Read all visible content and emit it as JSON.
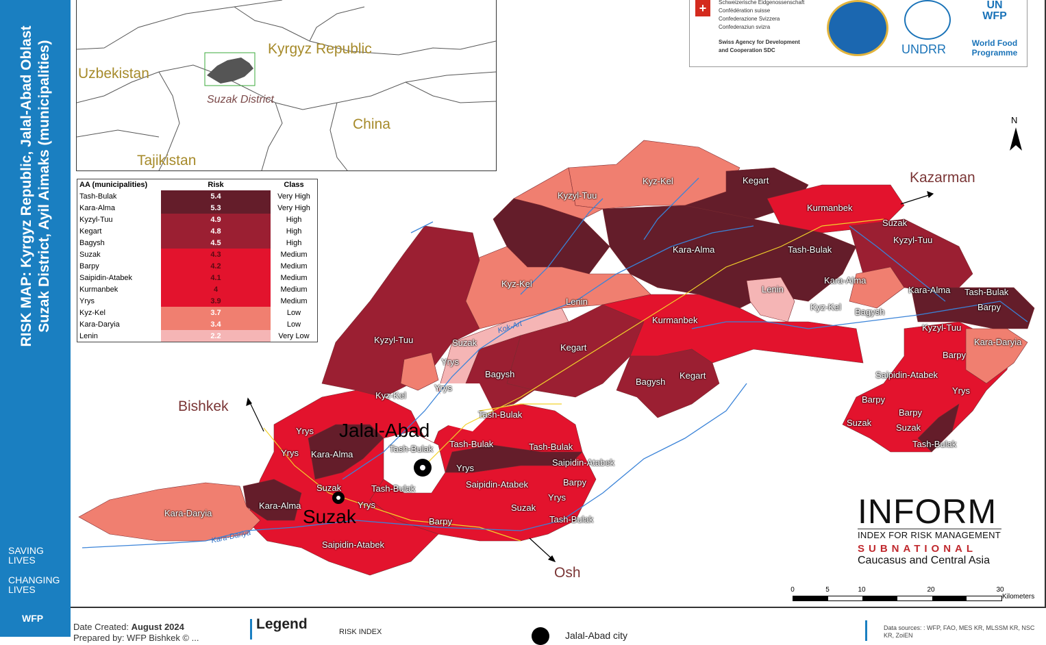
{
  "sidebar": {
    "title_line1": "RISK MAP: Kyrgyz Republic, Jalal-Abad Oblast",
    "title_line2": "Suzak District, Ayil Aimaks (municipalities)",
    "slogan1": [
      "SAVING",
      "LIVES"
    ],
    "slogan2": [
      "CHANGING",
      "LIVES"
    ],
    "wfp_mark": "WFP"
  },
  "inset": {
    "labels": {
      "kyrgyz": "Kyrgyz Republic",
      "uzbekistan": "Uzbekistan",
      "china": "China",
      "tajikistan": "Tajikistan",
      "district": "Suzak District"
    }
  },
  "risk_table": {
    "headers": [
      "AA (municipalities)",
      "Risk",
      "Class"
    ],
    "rows": [
      {
        "name": "Tash-Bulak",
        "risk": "5.4",
        "class": "Very High",
        "color": "#641d2a"
      },
      {
        "name": "Kara-Alma",
        "risk": "5.3",
        "class": "Very High",
        "color": "#641d2a"
      },
      {
        "name": "Kyzyl-Tuu",
        "risk": "4.9",
        "class": "High",
        "color": "#9b1f32"
      },
      {
        "name": "Kegart",
        "risk": "4.8",
        "class": "High",
        "color": "#9b1f32"
      },
      {
        "name": "Bagysh",
        "risk": "4.5",
        "class": "High",
        "color": "#9b1f32"
      },
      {
        "name": "Suzak",
        "risk": "4.3",
        "class": "Medium",
        "color": "#e3132d"
      },
      {
        "name": "Barpy",
        "risk": "4.2",
        "class": "Medium",
        "color": "#e3132d"
      },
      {
        "name": "Saipidin-Atabek",
        "risk": "4.1",
        "class": "Medium",
        "color": "#e3132d"
      },
      {
        "name": "Kurmanbek",
        "risk": "4",
        "class": "Medium",
        "color": "#e3132d"
      },
      {
        "name": "Yrys",
        "risk": "3.9",
        "class": "Medium",
        "color": "#e3132d"
      },
      {
        "name": "Kyz-Kel",
        "risk": "3.7",
        "class": "Low",
        "color": "#f07f70"
      },
      {
        "name": "Kara-Daryia",
        "risk": "3.4",
        "class": "Low",
        "color": "#f07f70"
      },
      {
        "name": "Lenin",
        "risk": "2.2",
        "class": "Very Low",
        "color": "#f5b5b5"
      }
    ]
  },
  "logos": {
    "sdc_lines": [
      "Schweizerische Eidgenossenschaft",
      "Confédération suisse",
      "Confederazione Svizzera",
      "Confederaziun svizra"
    ],
    "sdc_sub": [
      "Swiss Agency for Development",
      "and Cooperation SDC"
    ],
    "swiss_cross": "+",
    "undrr": "UNDRR",
    "wfp_badge": [
      "UN",
      "WFP"
    ],
    "wfp_name": [
      "World Food",
      "Programme"
    ]
  },
  "map": {
    "north": "N",
    "cities_big": [
      {
        "name": "Jalal-Abad"
      },
      {
        "name": "Suzak"
      }
    ],
    "external": [
      {
        "name": "Kazarman"
      },
      {
        "name": "Bishkek"
      },
      {
        "name": "Osh"
      }
    ],
    "rivers": [
      {
        "name": "Kok-Art"
      },
      {
        "name": "Kara-Dariya"
      }
    ],
    "municipality_labels": [
      "Kyz-Kel",
      "Kegart",
      "Kazarman",
      "Kyzyl-Tuu",
      "Kurmanbek",
      "Suzak",
      "Kyzyl-Tuu",
      "Kara-Alma",
      "Tash-Bulak",
      "Kyz-Kel",
      "Lenin",
      "Kara-Alma",
      "Lenin",
      "Kyz-Kel",
      "Kara-Alma",
      "Tash-Bulak",
      "Bagysh",
      "Barpy",
      "Kurmanbek",
      "Kyzyl-Tuu",
      "Kara-Daryia",
      "Kyzyl-Tuu",
      "Suzak",
      "Kegart",
      "Barpy",
      "Yrys",
      "Bagysh",
      "Saipidin-Atabek",
      "Bagysh",
      "Kegart",
      "Yrys",
      "Kyz-Kel",
      "Barpy",
      "Tash-Bulak",
      "Barpy",
      "Suzak",
      "Yrys",
      "Suzak",
      "Yrys",
      "Tash-Bulak",
      "Yrys",
      "Kara-Alma",
      "Tash-Bulak",
      "Tash-Bulak",
      "Tash-Bulak",
      "Yrys",
      "Saipidin-Atabek",
      "Suzak",
      "Tash-Bulak",
      "Saipidin-Atabek",
      "Barpy",
      "Kara-Alma",
      "Yrys",
      "Yrys",
      "Suzak",
      "Kara-Daryia",
      "Barpy",
      "Tash-Bulak",
      "Saipidin-Atabek"
    ]
  },
  "inform": {
    "logo": "INFORM",
    "subtitle": "INDEX FOR RISK MANAGEMENT",
    "national": "SUBNATIONAL",
    "region": "Caucasus and Central Asia"
  },
  "scale": {
    "ticks": [
      "0",
      "5",
      "10",
      "20",
      "30"
    ],
    "units": "Kilometers"
  },
  "footer": {
    "date_label": "Date Created:",
    "date_value": "August 2024",
    "prepared": "Prepared by: WFP Bishkek © ...",
    "legend_title": "Legend",
    "risk_index": "RISK INDEX",
    "city_legend": "Jalal-Abad city",
    "sources": "Data sources: : WFP, FAO, MES KR, MLSSM KR, NSC KR, ZoiEN"
  }
}
